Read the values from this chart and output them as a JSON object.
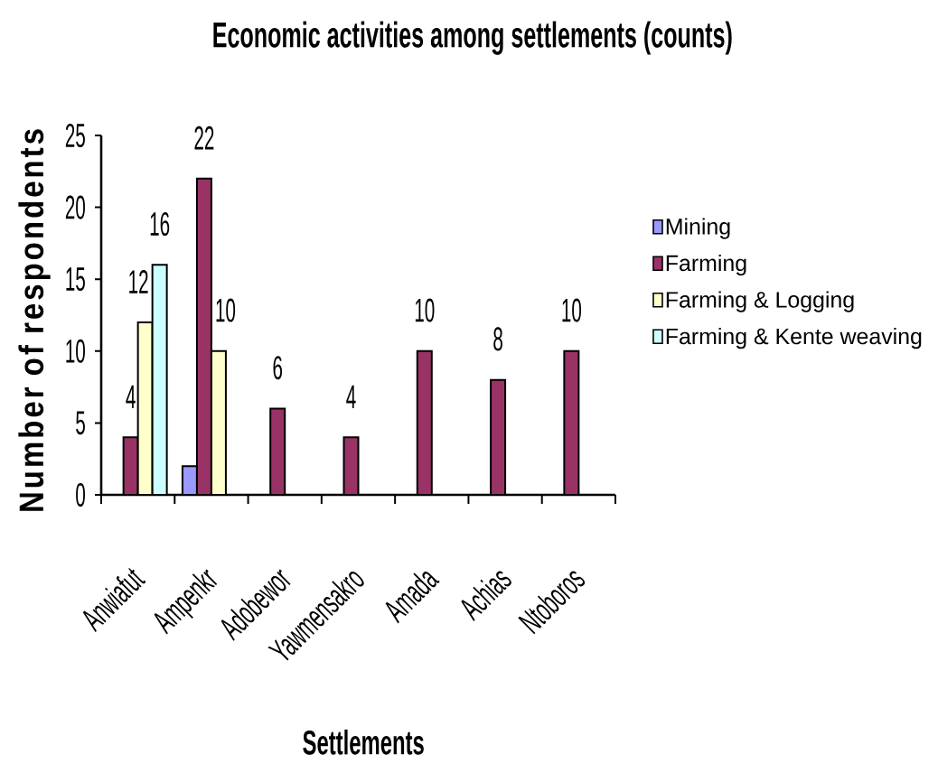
{
  "chart_data": {
    "type": "bar",
    "title": "Economic activities among settlements (counts)",
    "xlabel": "Settlements",
    "ylabel": "Number of respondents",
    "categories": [
      "Anwiafut",
      "Ampenkr",
      "Adobewor",
      "Yawmensakro",
      "Amada",
      "Achias",
      "Ntoboros"
    ],
    "series": [
      {
        "name": "Mining",
        "color": "#9999ff",
        "values": [
          null,
          2,
          null,
          null,
          null,
          null,
          null
        ],
        "value_labels": [
          null,
          null,
          null,
          null,
          null,
          null,
          null
        ]
      },
      {
        "name": "Farming",
        "color": "#993366",
        "values": [
          4,
          22,
          6,
          4,
          10,
          8,
          10
        ],
        "value_labels": [
          "4",
          "22",
          "6",
          "4",
          "10",
          "8",
          "10"
        ]
      },
      {
        "name": "Farming & Logging",
        "color": "#ffffcc",
        "values": [
          12,
          10,
          null,
          null,
          null,
          null,
          null
        ],
        "value_labels": [
          "12",
          "10",
          null,
          null,
          null,
          null,
          null
        ]
      },
      {
        "name": "Farming & Kente weaving",
        "color": "#ccffff",
        "values": [
          16,
          null,
          null,
          null,
          null,
          null,
          null
        ],
        "value_labels": [
          "16",
          null,
          null,
          null,
          null,
          null,
          null
        ]
      }
    ],
    "ylim": [
      0,
      25
    ],
    "yticks": [
      0,
      5,
      10,
      15,
      20,
      25
    ],
    "legend": "right"
  }
}
